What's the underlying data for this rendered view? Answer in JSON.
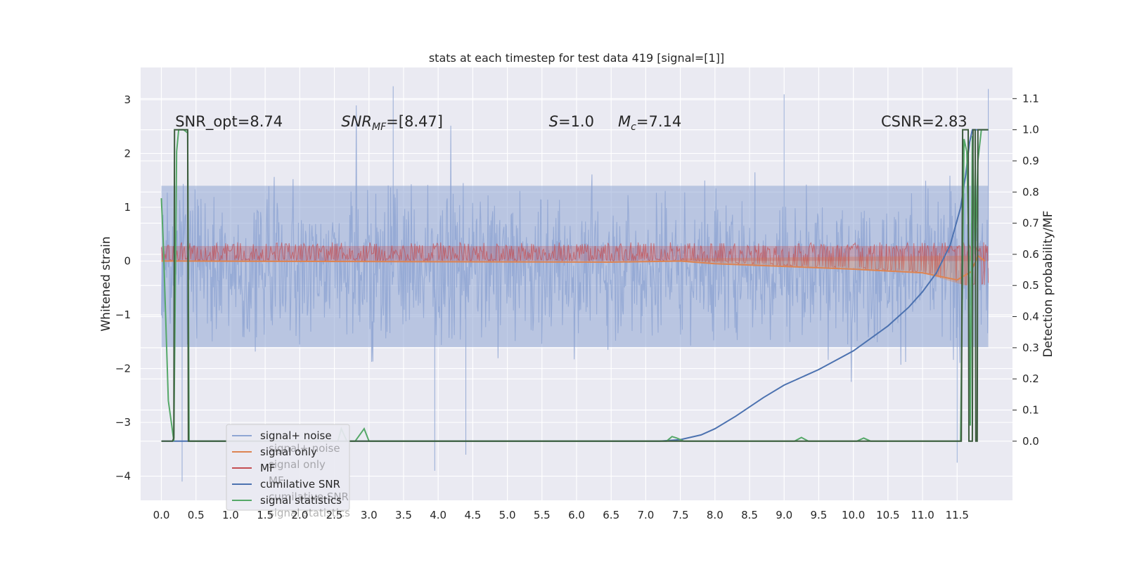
{
  "chart_data": {
    "type": "line",
    "title": "stats at each timestep for test data 419 [signal=[1]]",
    "xlabel": "",
    "ylabel": "Whitened strain",
    "y2label": "Detection probability/MF",
    "xlim": [
      -0.3,
      12.3
    ],
    "ylim": [
      -4.45,
      3.6
    ],
    "y2lim": [
      -0.19,
      1.2
    ],
    "x_ticks": [
      0.0,
      0.5,
      1.0,
      1.5,
      2.0,
      2.5,
      3.0,
      3.5,
      4.0,
      4.5,
      5.0,
      5.5,
      6.0,
      6.5,
      7.0,
      7.5,
      8.0,
      8.5,
      9.0,
      9.5,
      10.0,
      10.5,
      11.0,
      11.5
    ],
    "x_tick_labels": [
      "0.0",
      "0.5",
      "1.0",
      "1.5",
      "2.0",
      "2.5",
      "3.0",
      "3.5",
      "4.0",
      "4.5",
      "5.0",
      "5.5",
      "6.0",
      "6.5",
      "7.0",
      "7.5",
      "8.0",
      "8.5",
      "9.0",
      "9.5",
      "10.0",
      "10.5",
      "11.0",
      "11.5"
    ],
    "y_ticks": [
      -4,
      -3,
      -2,
      -1,
      0,
      1,
      2,
      3
    ],
    "y_tick_labels": [
      "−4",
      "−3",
      "−2",
      "−1",
      "0",
      "1",
      "2",
      "3"
    ],
    "y2_ticks": [
      0.0,
      0.1,
      0.2,
      0.3,
      0.4,
      0.5,
      0.6,
      0.7,
      0.8,
      0.9,
      1.0,
      1.1
    ],
    "y2_tick_labels": [
      "0.0",
      "0.1",
      "0.2",
      "0.3",
      "0.4",
      "0.5",
      "0.6",
      "0.7",
      "0.8",
      "0.9",
      "1.0",
      "1.1"
    ],
    "grid": true,
    "legend_position": "lower-left",
    "annotations": [
      {
        "text": "SNR_opt=8.74",
        "x": 0.2,
        "y": 2.5
      },
      {
        "text": "SNR_MF=[8.47]",
        "x": 2.6,
        "y": 2.5
      },
      {
        "text": "S=1.0",
        "x": 5.6,
        "y": 2.5
      },
      {
        "text": "M_c=7.14",
        "x": 6.6,
        "y": 2.5
      },
      {
        "text": "CSNR=2.83",
        "x": 10.4,
        "y": 2.5
      }
    ],
    "series": [
      {
        "name": "signal+ noise",
        "axis": "left",
        "color": "#8fa6d3",
        "style": "dense-noise",
        "typical_band": [
          -1.6,
          1.4
        ],
        "extreme_points": [
          [
            0.3,
            -4.1
          ],
          [
            3.35,
            3.25
          ],
          [
            3.95,
            -3.9
          ],
          [
            4.4,
            -3.6
          ],
          [
            9.0,
            3.1
          ],
          [
            11.5,
            -3.75
          ],
          [
            11.95,
            3.2
          ]
        ]
      },
      {
        "name": "signal only",
        "axis": "left",
        "color": "#dd8452",
        "points": [
          [
            0,
            0.0
          ],
          [
            6.5,
            -0.02
          ],
          [
            7.5,
            0.0
          ],
          [
            8.0,
            -0.05
          ],
          [
            9.0,
            -0.1
          ],
          [
            10.0,
            -0.15
          ],
          [
            11.0,
            -0.22
          ],
          [
            11.5,
            -0.35
          ],
          [
            11.7,
            -0.2
          ],
          [
            11.8,
            0.1
          ],
          [
            11.9,
            0.0
          ]
        ]
      },
      {
        "name": "MF",
        "axis": "left",
        "color": "#c44e52",
        "style": "dense-noise",
        "typical_band": [
          0.0,
          0.28
        ],
        "envelope_growth": [
          [
            7.5,
            0.0
          ],
          [
            9.0,
            -0.1
          ],
          [
            10.0,
            -0.15
          ],
          [
            11.0,
            -0.22
          ],
          [
            11.6,
            -0.45
          ]
        ]
      },
      {
        "name": "cumilative SNR",
        "axis": "right",
        "color": "#4c72b0",
        "points": [
          [
            0,
            0.0
          ],
          [
            5.0,
            0.0
          ],
          [
            7.2,
            0.0
          ],
          [
            7.5,
            0.005
          ],
          [
            7.8,
            0.02
          ],
          [
            8.0,
            0.04
          ],
          [
            8.3,
            0.08
          ],
          [
            8.7,
            0.14
          ],
          [
            9.0,
            0.18
          ],
          [
            9.5,
            0.23
          ],
          [
            10.0,
            0.29
          ],
          [
            10.5,
            0.37
          ],
          [
            10.8,
            0.43
          ],
          [
            11.0,
            0.48
          ],
          [
            11.2,
            0.54
          ],
          [
            11.4,
            0.63
          ],
          [
            11.55,
            0.75
          ],
          [
            11.62,
            0.85
          ],
          [
            11.68,
            0.96
          ],
          [
            11.72,
            1.0
          ],
          [
            11.95,
            1.0
          ]
        ]
      },
      {
        "name": "signal statistics",
        "axis": "right",
        "color": "#55a868",
        "points": [
          [
            0.0,
            0.78
          ],
          [
            0.03,
            0.62
          ],
          [
            0.1,
            0.13
          ],
          [
            0.15,
            0.05
          ],
          [
            0.18,
            0.0
          ],
          [
            0.22,
            0.93
          ],
          [
            0.25,
            1.0
          ],
          [
            0.32,
            1.0
          ],
          [
            0.38,
            0.99
          ],
          [
            0.4,
            0.0
          ],
          [
            2.4,
            0.0
          ],
          [
            2.55,
            0.0
          ],
          [
            2.6,
            0.04
          ],
          [
            2.68,
            0.0
          ],
          [
            2.8,
            0.0
          ],
          [
            2.93,
            0.04
          ],
          [
            3.0,
            0.0
          ],
          [
            7.3,
            0.0
          ],
          [
            7.38,
            0.015
          ],
          [
            7.45,
            0.01
          ],
          [
            7.55,
            0.0
          ],
          [
            9.15,
            0.0
          ],
          [
            9.25,
            0.012
          ],
          [
            9.35,
            0.0
          ],
          [
            10.05,
            0.0
          ],
          [
            10.15,
            0.01
          ],
          [
            10.25,
            0.0
          ],
          [
            11.55,
            0.0
          ],
          [
            11.6,
            0.97
          ],
          [
            11.64,
            0.93
          ],
          [
            11.67,
            0.6
          ],
          [
            11.69,
            0.05
          ],
          [
            11.72,
            0.98
          ],
          [
            11.76,
            0.6
          ],
          [
            11.8,
            0.9
          ],
          [
            11.85,
            1.0
          ],
          [
            11.95,
            1.0
          ]
        ]
      },
      {
        "name": "",
        "axis": "right",
        "color": "#3d5b3d",
        "legend": false,
        "points": [
          [
            0.0,
            0.0
          ],
          [
            0.16,
            0.0
          ],
          [
            0.18,
            0.01
          ],
          [
            0.19,
            1.0
          ],
          [
            0.38,
            1.0
          ],
          [
            0.39,
            0.0
          ],
          [
            11.56,
            0.0
          ],
          [
            11.58,
            1.0
          ],
          [
            11.66,
            1.0
          ],
          [
            11.67,
            0.0
          ],
          [
            11.72,
            0.0
          ],
          [
            11.73,
            1.0
          ],
          [
            11.76,
            1.0
          ],
          [
            11.77,
            0.0
          ],
          [
            11.79,
            0.0
          ],
          [
            11.8,
            1.0
          ],
          [
            11.95,
            1.0
          ]
        ]
      }
    ],
    "legend_entries": [
      {
        "label": "signal+ noise",
        "color": "#8fa6d3"
      },
      {
        "label": "signal only",
        "color": "#dd8452"
      },
      {
        "label": "MF",
        "color": "#c44e52"
      },
      {
        "label": "cumilative SNR",
        "color": "#4c72b0"
      },
      {
        "label": "signal statistics",
        "color": "#55a868"
      }
    ],
    "ghost_legend_text": [
      "signal+ noise",
      "signal only",
      "MF",
      "cumilative SNR",
      "signal statistics"
    ]
  }
}
